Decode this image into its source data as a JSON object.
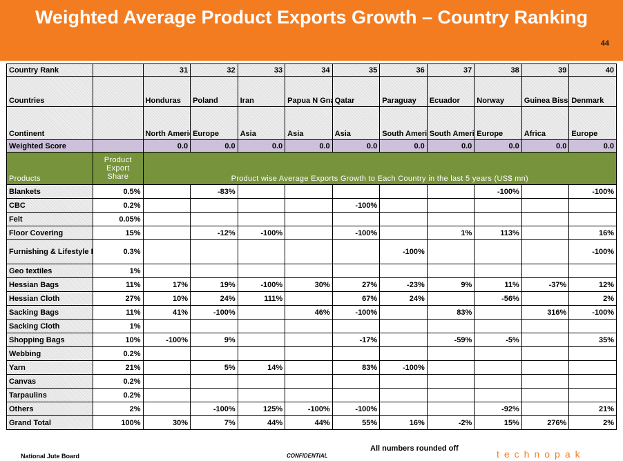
{
  "slide": {
    "title": "Weighted Average Product Exports Growth – Country Ranking",
    "number": "44"
  },
  "header": {
    "rank_label": "Country Rank",
    "countries_label": "Countries",
    "continent_label": "Continent",
    "score_label": "Weighted Score",
    "products_label": "Products",
    "share_label": "Product Export Share",
    "growth_label": "Product wise Average Exports Growth to Each Country  in the last 5 years (US$ mn)"
  },
  "columns": [
    {
      "rank": "31",
      "country": "Honduras",
      "continent": "North America",
      "score": "0.0"
    },
    {
      "rank": "32",
      "country": "Poland",
      "continent": "Europe",
      "score": "0.0"
    },
    {
      "rank": "33",
      "country": "Iran",
      "continent": "Asia",
      "score": "0.0"
    },
    {
      "rank": "34",
      "country": "Papua N Gna",
      "continent": "Asia",
      "score": "0.0"
    },
    {
      "rank": "35",
      "country": "Qatar",
      "continent": "Asia",
      "score": "0.0"
    },
    {
      "rank": "36",
      "country": "Paraguay",
      "continent": "South America",
      "score": "0.0"
    },
    {
      "rank": "37",
      "country": "Ecuador",
      "continent": "South America",
      "score": "0.0"
    },
    {
      "rank": "38",
      "country": "Norway",
      "continent": "Europe",
      "score": "0.0"
    },
    {
      "rank": "39",
      "country": "Guinea Bissau",
      "continent": "Africa",
      "score": "0.0"
    },
    {
      "rank": "40",
      "country": "Denmark",
      "continent": "Europe",
      "score": "0.0"
    }
  ],
  "rows": [
    {
      "product": "Blankets",
      "share": "0.5%",
      "values": [
        "",
        "-83%",
        "",
        "",
        "",
        "",
        "",
        "-100%",
        "",
        "-100%"
      ]
    },
    {
      "product": "CBC",
      "share": "0.2%",
      "values": [
        "",
        "",
        "",
        "",
        "-100%",
        "",
        "",
        "",
        "",
        ""
      ]
    },
    {
      "product": "Felt",
      "share": "0.05%",
      "values": [
        "",
        "",
        "",
        "",
        "",
        "",
        "",
        "",
        "",
        ""
      ]
    },
    {
      "product": "Floor Covering",
      "share": "15%",
      "values": [
        "",
        "-12%",
        "-100%",
        "",
        "-100%",
        "",
        "1%",
        "113%",
        "",
        "16%"
      ]
    },
    {
      "product": "Furnishing & Lifestyle Items",
      "share": "0.3%",
      "values": [
        "",
        "",
        "",
        "",
        "",
        "-100%",
        "",
        "",
        "",
        "-100%"
      ]
    },
    {
      "product": "Geo textiles",
      "share": "1%",
      "values": [
        "",
        "",
        "",
        "",
        "",
        "",
        "",
        "",
        "",
        ""
      ]
    },
    {
      "product": "Hessian Bags",
      "share": "11%",
      "values": [
        "17%",
        "19%",
        "-100%",
        "30%",
        "27%",
        "-23%",
        "9%",
        "11%",
        "-37%",
        "12%"
      ]
    },
    {
      "product": "Hessian Cloth",
      "share": "27%",
      "values": [
        "10%",
        "24%",
        "111%",
        "",
        "67%",
        "24%",
        "",
        "-56%",
        "",
        "2%"
      ]
    },
    {
      "product": "Sacking Bags",
      "share": "11%",
      "values": [
        "41%",
        "-100%",
        "",
        "46%",
        "-100%",
        "",
        "83%",
        "",
        "316%",
        "-100%"
      ]
    },
    {
      "product": "Sacking Cloth",
      "share": "1%",
      "values": [
        "",
        "",
        "",
        "",
        "",
        "",
        "",
        "",
        "",
        ""
      ]
    },
    {
      "product": "Shopping Bags",
      "share": "10%",
      "values": [
        "-100%",
        "9%",
        "",
        "",
        "-17%",
        "",
        "-59%",
        "-5%",
        "",
        "35%"
      ]
    },
    {
      "product": "Webbing",
      "share": "0.2%",
      "values": [
        "",
        "",
        "",
        "",
        "",
        "",
        "",
        "",
        "",
        ""
      ]
    },
    {
      "product": "Yarn",
      "share": "21%",
      "values": [
        "",
        "5%",
        "14%",
        "",
        "83%",
        "-100%",
        "",
        "",
        "",
        ""
      ]
    },
    {
      "product": "Canvas",
      "share": "0.2%",
      "values": [
        "",
        "",
        "",
        "",
        "",
        "",
        "",
        "",
        "",
        ""
      ]
    },
    {
      "product": "Tarpaulins",
      "share": "0.2%",
      "values": [
        "",
        "",
        "",
        "",
        "",
        "",
        "",
        "",
        "",
        ""
      ]
    },
    {
      "product": "Others",
      "share": "2%",
      "values": [
        "",
        "-100%",
        "125%",
        "-100%",
        "-100%",
        "",
        "",
        "-92%",
        "",
        "21%"
      ]
    },
    {
      "product": "Grand Total",
      "share": "100%",
      "values": [
        "30%",
        "7%",
        "44%",
        "44%",
        "55%",
        "16%",
        "-2%",
        "15%",
        "276%",
        "2%"
      ]
    }
  ],
  "footer": {
    "left": "National Jute Board",
    "center": "CONFIDENTIAL",
    "note": "All numbers rounded off",
    "logo": "technopak"
  },
  "colors": {
    "banner": "#f47c20",
    "score_row": "#ccc0da",
    "products_header": "#77933c"
  }
}
